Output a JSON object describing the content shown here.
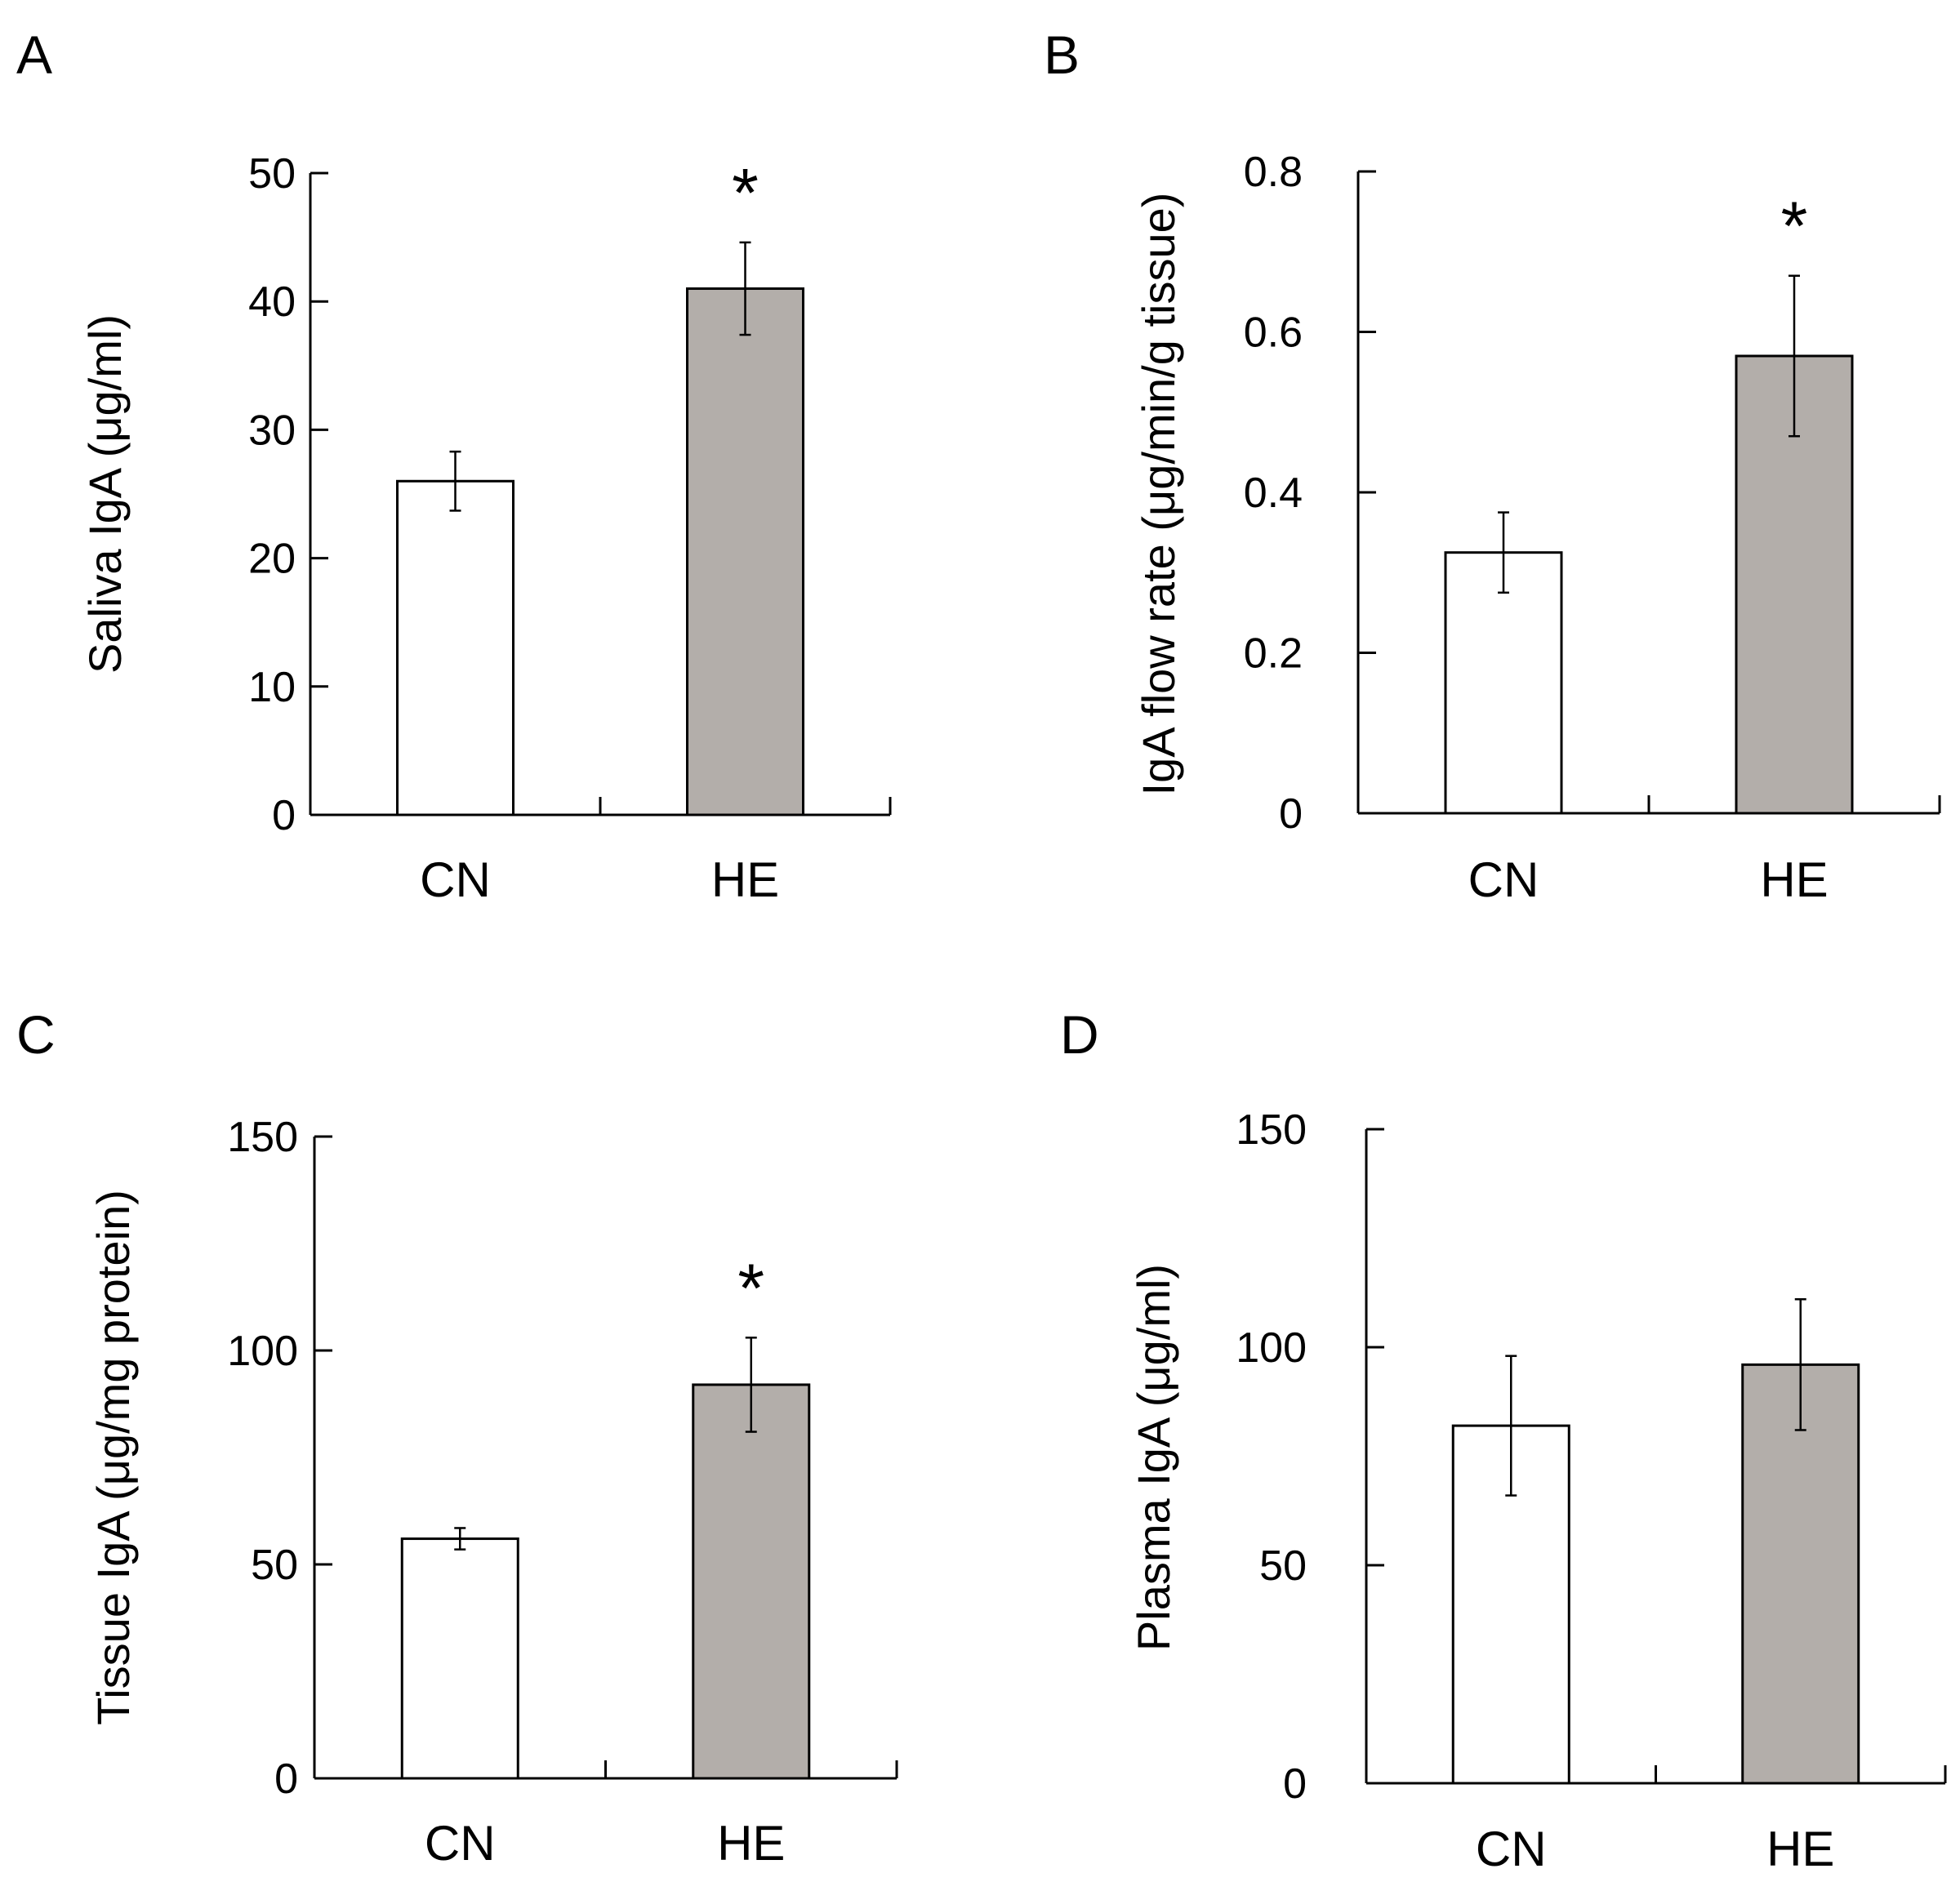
{
  "figure": {
    "background": "#ffffff"
  },
  "styles": {
    "axis_color": "#000000",
    "control_bar_fill": "#ffffff",
    "treatment_bar_fill": "#b3aeaa",
    "bar_stroke": "#000000"
  },
  "chart_data": [
    {
      "id": "A",
      "panel_label": "A",
      "type": "bar",
      "ylabel": "Saliva IgA (μg/ml)",
      "ylim": [
        0,
        50
      ],
      "yticks": [
        0,
        10,
        20,
        30,
        40,
        50
      ],
      "ytick_labels": [
        "0",
        "10",
        "20",
        "30",
        "40",
        "50"
      ],
      "categories": [
        "CN",
        "HE"
      ],
      "values": [
        26,
        41
      ],
      "errors": [
        2.3,
        3.6
      ],
      "significance": [
        "",
        "*"
      ]
    },
    {
      "id": "B",
      "panel_label": "B",
      "type": "bar",
      "ylabel": "IgA flow rate (μg/min/g tissue)",
      "ylim": [
        0,
        0.8
      ],
      "yticks": [
        0,
        0.2,
        0.4,
        0.6,
        0.8
      ],
      "ytick_labels": [
        "0",
        "0.2",
        "0.4",
        "0.6",
        "0.8"
      ],
      "categories": [
        "CN",
        "HE"
      ],
      "values": [
        0.325,
        0.57
      ],
      "errors": [
        0.05,
        0.1
      ],
      "significance": [
        "",
        "*"
      ]
    },
    {
      "id": "C",
      "panel_label": "C",
      "type": "bar",
      "ylabel": "Tissue IgA (μg/mg protein)",
      "ylim": [
        0,
        150
      ],
      "yticks": [
        0,
        50,
        100,
        150
      ],
      "ytick_labels": [
        "0",
        "50",
        "100",
        "150"
      ],
      "categories": [
        "CN",
        "HE"
      ],
      "values": [
        56,
        92
      ],
      "errors": [
        2.5,
        11
      ],
      "significance": [
        "",
        "*"
      ]
    },
    {
      "id": "D",
      "panel_label": "D",
      "type": "bar",
      "ylabel": "Plasma IgA (μg/ml)",
      "ylim": [
        0,
        150
      ],
      "yticks": [
        0,
        50,
        100,
        150
      ],
      "ytick_labels": [
        "0",
        "50",
        "100",
        "150"
      ],
      "categories": [
        "CN",
        "HE"
      ],
      "values": [
        82,
        96
      ],
      "errors": [
        16,
        15
      ],
      "significance": [
        "",
        ""
      ]
    }
  ]
}
